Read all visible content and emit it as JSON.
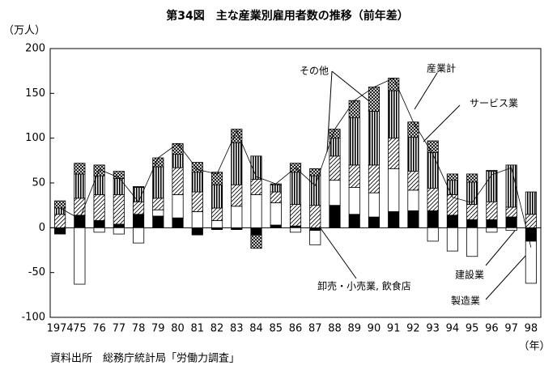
{
  "chart_data": {
    "type": "stacked-bar",
    "title": "第34図　主な産業別雇用者数の推移（前年差）",
    "y_unit": "（万人）",
    "x_unit": "（年）",
    "source": "資料出所　総務庁統計局「労働力調査」",
    "categories": [
      "1974",
      "75",
      "76",
      "77",
      "78",
      "79",
      "80",
      "81",
      "82",
      "83",
      "84",
      "85",
      "86",
      "87",
      "88",
      "89",
      "90",
      "91",
      "92",
      "93",
      "94",
      "95",
      "96",
      "97",
      "98"
    ],
    "ylim": [
      -100,
      200
    ],
    "yticks": [
      -100,
      -50,
      0,
      50,
      100,
      150,
      200
    ],
    "series": [
      {
        "name": "建設業",
        "color": "#000000",
        "pattern": "solid",
        "values": [
          -7,
          14,
          8,
          4,
          15,
          13,
          11,
          -8,
          -2,
          -2,
          -8,
          3,
          2,
          -3,
          25,
          15,
          12,
          18,
          19,
          19,
          14,
          9,
          9,
          12,
          -15
        ]
      },
      {
        "name": "製造業",
        "color": "#ffffff",
        "pattern": "solid",
        "values": [
          0,
          -63,
          -5,
          -7,
          -17,
          7,
          26,
          18,
          8,
          24,
          37,
          25,
          -5,
          -16,
          28,
          30,
          27,
          48,
          23,
          -15,
          -26,
          -32,
          -5,
          -3,
          -47
        ]
      },
      {
        "name": "卸売・小売業, 飲食店",
        "color": "#000000",
        "pattern": "diagonal",
        "values": [
          15,
          19,
          29,
          33,
          14,
          13,
          30,
          22,
          14,
          24,
          17,
          12,
          24,
          25,
          27,
          25,
          31,
          34,
          21,
          25,
          23,
          17,
          20,
          11,
          15
        ]
      },
      {
        "name": "サービス業",
        "color": "#000000",
        "pattern": "vertical",
        "values": [
          7,
          27,
          21,
          18,
          16,
          35,
          15,
          22,
          26,
          47,
          26,
          8,
          36,
          33,
          20,
          53,
          60,
          53,
          38,
          40,
          16,
          25,
          34,
          47,
          25
        ]
      },
      {
        "name": "その他",
        "color": "#000000",
        "pattern": "cross",
        "values": [
          8,
          12,
          12,
          8,
          1,
          10,
          12,
          11,
          14,
          15,
          -15,
          1,
          10,
          8,
          10,
          19,
          27,
          14,
          17,
          13,
          7,
          9,
          1,
          0,
          0
        ]
      }
    ],
    "total": {
      "name": "産業計",
      "color": "#000000",
      "values": [
        22,
        10,
        65,
        56,
        29,
        78,
        94,
        65,
        60,
        108,
        57,
        49,
        67,
        47,
        110,
        142,
        157,
        167,
        118,
        82,
        34,
        28,
        59,
        67,
        -22
      ]
    }
  }
}
